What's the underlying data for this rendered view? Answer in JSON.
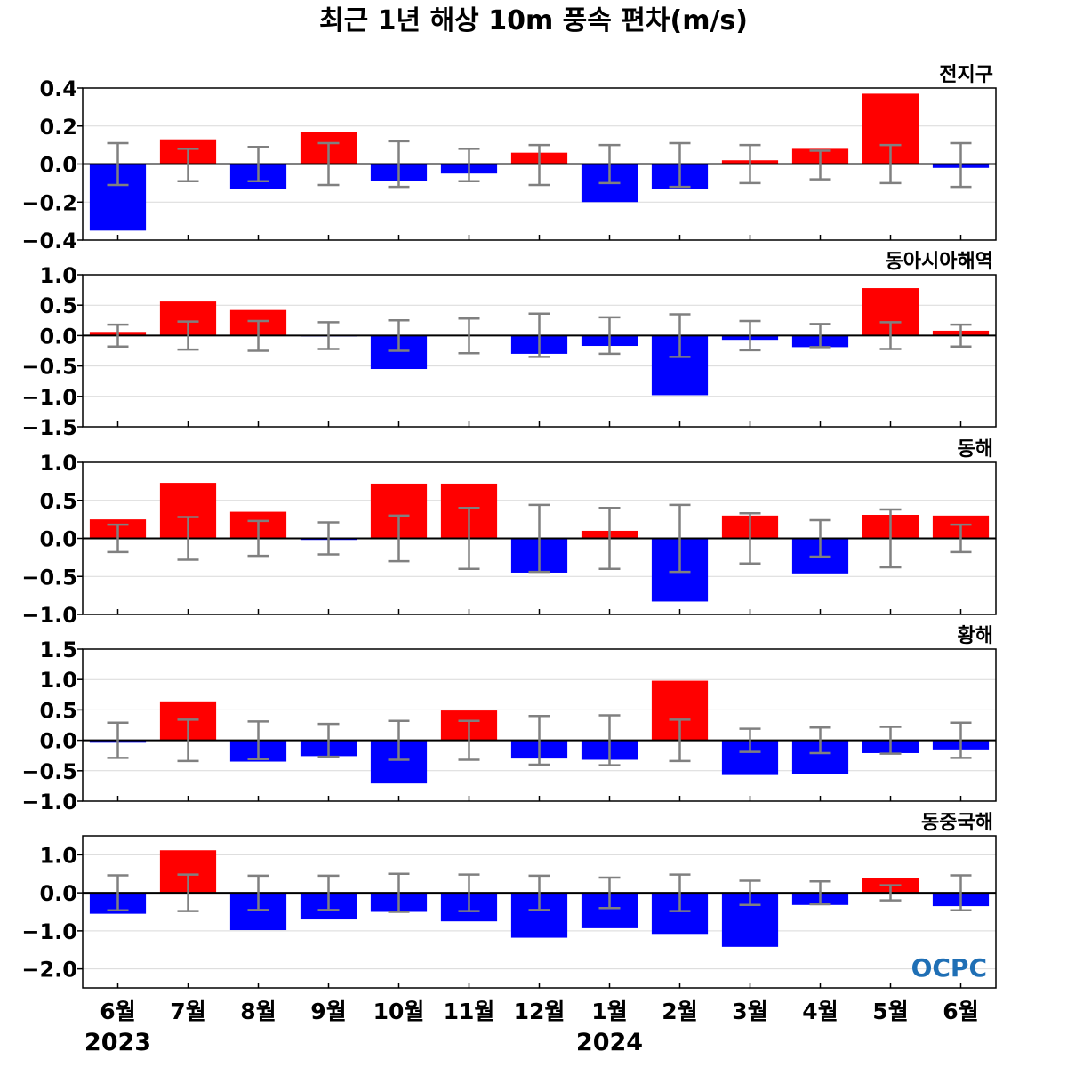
{
  "title": "최근 1년 해상 10m 풍속 편차(m/s)",
  "logo": "OCPC",
  "colors": {
    "positive": "#ff0000",
    "negative": "#0000ff",
    "errorbar": "#808080",
    "grid": "#d9d9d9",
    "logo": "#1f6fb5"
  },
  "chart_data": {
    "type": "bar",
    "categories": [
      "6월",
      "7월",
      "8월",
      "9월",
      "10월",
      "11월",
      "12월",
      "1월",
      "2월",
      "3월",
      "4월",
      "5월",
      "6월"
    ],
    "year_labels": [
      {
        "label": "2023",
        "category_index": 0
      },
      {
        "label": "2024",
        "category_index": 7
      }
    ],
    "panels": [
      {
        "region": "전지구",
        "ylim": [
          -0.4,
          0.4
        ],
        "yticks": [
          -0.4,
          -0.2,
          0.0,
          0.2,
          0.4
        ],
        "tick_labels": [
          "−0.4",
          "−0.2",
          "0.0",
          "0.2",
          "0.4"
        ],
        "values": [
          -0.35,
          0.13,
          -0.13,
          0.17,
          -0.09,
          -0.05,
          0.06,
          -0.2,
          -0.13,
          0.02,
          0.08,
          0.37,
          -0.02
        ],
        "error_upper": [
          0.11,
          0.08,
          0.09,
          0.11,
          0.12,
          0.08,
          0.1,
          0.1,
          0.11,
          0.1,
          0.07,
          0.1,
          0.11
        ],
        "error_lower": [
          -0.11,
          -0.09,
          -0.09,
          -0.11,
          -0.12,
          -0.09,
          -0.11,
          -0.1,
          -0.12,
          -0.1,
          -0.08,
          -0.1,
          -0.12
        ]
      },
      {
        "region": "동아시아해역",
        "ylim": [
          -1.5,
          1.0
        ],
        "yticks": [
          -1.5,
          -1.0,
          -0.5,
          0.0,
          0.5,
          1.0
        ],
        "tick_labels": [
          "−1.5",
          "−1.0",
          "−0.5",
          "0.0",
          "0.5",
          "1.0"
        ],
        "values": [
          0.06,
          0.56,
          0.42,
          -0.01,
          -0.55,
          0.01,
          -0.3,
          -0.17,
          -0.98,
          -0.07,
          -0.19,
          0.78,
          0.08
        ],
        "error_upper": [
          0.18,
          0.23,
          0.24,
          0.22,
          0.25,
          0.28,
          0.36,
          0.3,
          0.35,
          0.24,
          0.19,
          0.22,
          0.18
        ],
        "error_lower": [
          -0.18,
          -0.23,
          -0.25,
          -0.22,
          -0.25,
          -0.29,
          -0.35,
          -0.3,
          -0.35,
          -0.24,
          -0.19,
          -0.22,
          -0.18
        ]
      },
      {
        "region": "동해",
        "ylim": [
          -1.0,
          1.0
        ],
        "yticks": [
          -1.0,
          -0.5,
          0.0,
          0.5,
          1.0
        ],
        "tick_labels": [
          "−1.0",
          "−0.5",
          "0.0",
          "0.5",
          "1.0"
        ],
        "values": [
          0.25,
          0.73,
          0.35,
          -0.02,
          0.72,
          0.72,
          -0.45,
          0.1,
          -0.83,
          0.3,
          -0.46,
          0.31,
          0.3
        ],
        "error_upper": [
          0.18,
          0.28,
          0.23,
          0.21,
          0.3,
          0.4,
          0.44,
          0.4,
          0.44,
          0.33,
          0.24,
          0.38,
          0.18
        ],
        "error_lower": [
          -0.18,
          -0.28,
          -0.23,
          -0.21,
          -0.3,
          -0.4,
          -0.44,
          -0.4,
          -0.44,
          -0.33,
          -0.24,
          -0.38,
          -0.18
        ]
      },
      {
        "region": "황해",
        "ylim": [
          -1.0,
          1.5
        ],
        "yticks": [
          -1.0,
          -0.5,
          0.0,
          0.5,
          1.0,
          1.5
        ],
        "tick_labels": [
          "−1.0",
          "−0.5",
          "0.0",
          "0.5",
          "1.0",
          "1.5"
        ],
        "values": [
          -0.04,
          0.64,
          -0.35,
          -0.26,
          -0.71,
          0.49,
          -0.3,
          -0.32,
          0.98,
          -0.57,
          -0.56,
          -0.21,
          -0.15
        ],
        "error_upper": [
          0.29,
          0.34,
          0.31,
          0.27,
          0.32,
          0.32,
          0.4,
          0.41,
          0.34,
          0.19,
          0.21,
          0.22,
          0.29
        ],
        "error_lower": [
          -0.29,
          -0.34,
          -0.31,
          -0.27,
          -0.32,
          -0.32,
          -0.4,
          -0.41,
          -0.34,
          -0.19,
          -0.21,
          -0.22,
          -0.29
        ]
      },
      {
        "region": "동중국해",
        "ylim": [
          -2.5,
          1.5
        ],
        "yticks": [
          -2.0,
          -1.0,
          0.0,
          1.0
        ],
        "tick_labels": [
          "−2.0",
          "−1.0",
          "0.0",
          "1.0"
        ],
        "values": [
          -0.55,
          1.12,
          -0.98,
          -0.7,
          -0.5,
          -0.75,
          -1.18,
          -0.93,
          -1.08,
          -1.42,
          -0.32,
          0.4,
          -0.35
        ],
        "error_upper": [
          0.46,
          0.48,
          0.45,
          0.45,
          0.5,
          0.48,
          0.45,
          0.4,
          0.48,
          0.32,
          0.3,
          0.2,
          0.46
        ],
        "error_lower": [
          -0.46,
          -0.48,
          -0.45,
          -0.45,
          -0.5,
          -0.48,
          -0.45,
          -0.4,
          -0.48,
          -0.32,
          -0.3,
          -0.2,
          -0.46
        ]
      }
    ]
  }
}
